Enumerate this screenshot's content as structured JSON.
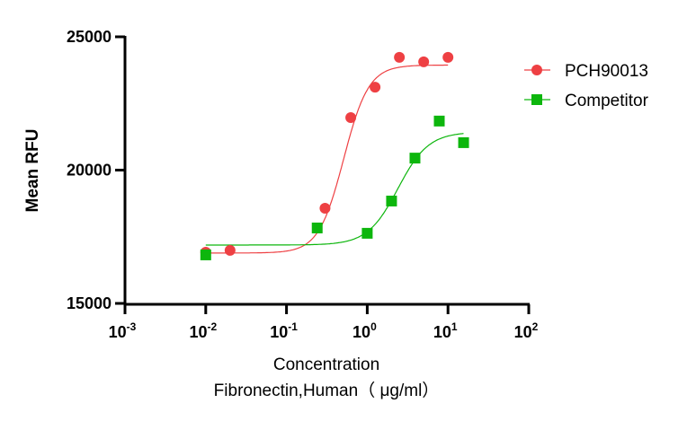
{
  "chart_data": {
    "type": "scatter",
    "title": "",
    "xlabel": "Concentration",
    "xlabel2": "Fibronectin,Human（ μg/ml）",
    "ylabel": "Mean RFU",
    "xscale": "log",
    "xlim": [
      0.001,
      100
    ],
    "ylim": [
      15000,
      25000
    ],
    "x_ticks": [
      {
        "base": "10",
        "exp": "-3",
        "value": 0.001
      },
      {
        "base": "10",
        "exp": "-2",
        "value": 0.01
      },
      {
        "base": "10",
        "exp": "-1",
        "value": 0.1
      },
      {
        "base": "10",
        "exp": "0",
        "value": 1
      },
      {
        "base": "10",
        "exp": "1",
        "value": 10
      },
      {
        "base": "10",
        "exp": "2",
        "value": 100
      }
    ],
    "y_ticks": [
      {
        "label": "15000",
        "value": 15000
      },
      {
        "label": "20000",
        "value": 20000
      },
      {
        "label": "25000",
        "value": 25000
      }
    ],
    "grid": false,
    "legend_position": "top-right",
    "series": [
      {
        "name": "PCH90013",
        "color": "#ee4043",
        "marker": "circle",
        "x": [
          0.01,
          0.02,
          0.3,
          0.625,
          1.25,
          2.5,
          5,
          10
        ],
        "y": [
          16920,
          16990,
          18570,
          21970,
          23110,
          24230,
          24060,
          24230
        ],
        "fit": {
          "bottom": 16890,
          "top": 23940,
          "ec50": 0.51,
          "hill": 2.8,
          "xrange": [
            0.01,
            10
          ]
        }
      },
      {
        "name": "Competitor",
        "color": "#0db60d",
        "marker": "square",
        "x": [
          0.01,
          0.24,
          1.0,
          2.0,
          3.9,
          7.8,
          15.6
        ],
        "y": [
          16820,
          17830,
          17630,
          18840,
          20450,
          21840,
          21030
        ],
        "fit": {
          "bottom": 17190,
          "top": 21430,
          "ec50": 2.4,
          "hill": 2.3,
          "xrange": [
            0.01,
            15.6
          ]
        }
      }
    ]
  }
}
